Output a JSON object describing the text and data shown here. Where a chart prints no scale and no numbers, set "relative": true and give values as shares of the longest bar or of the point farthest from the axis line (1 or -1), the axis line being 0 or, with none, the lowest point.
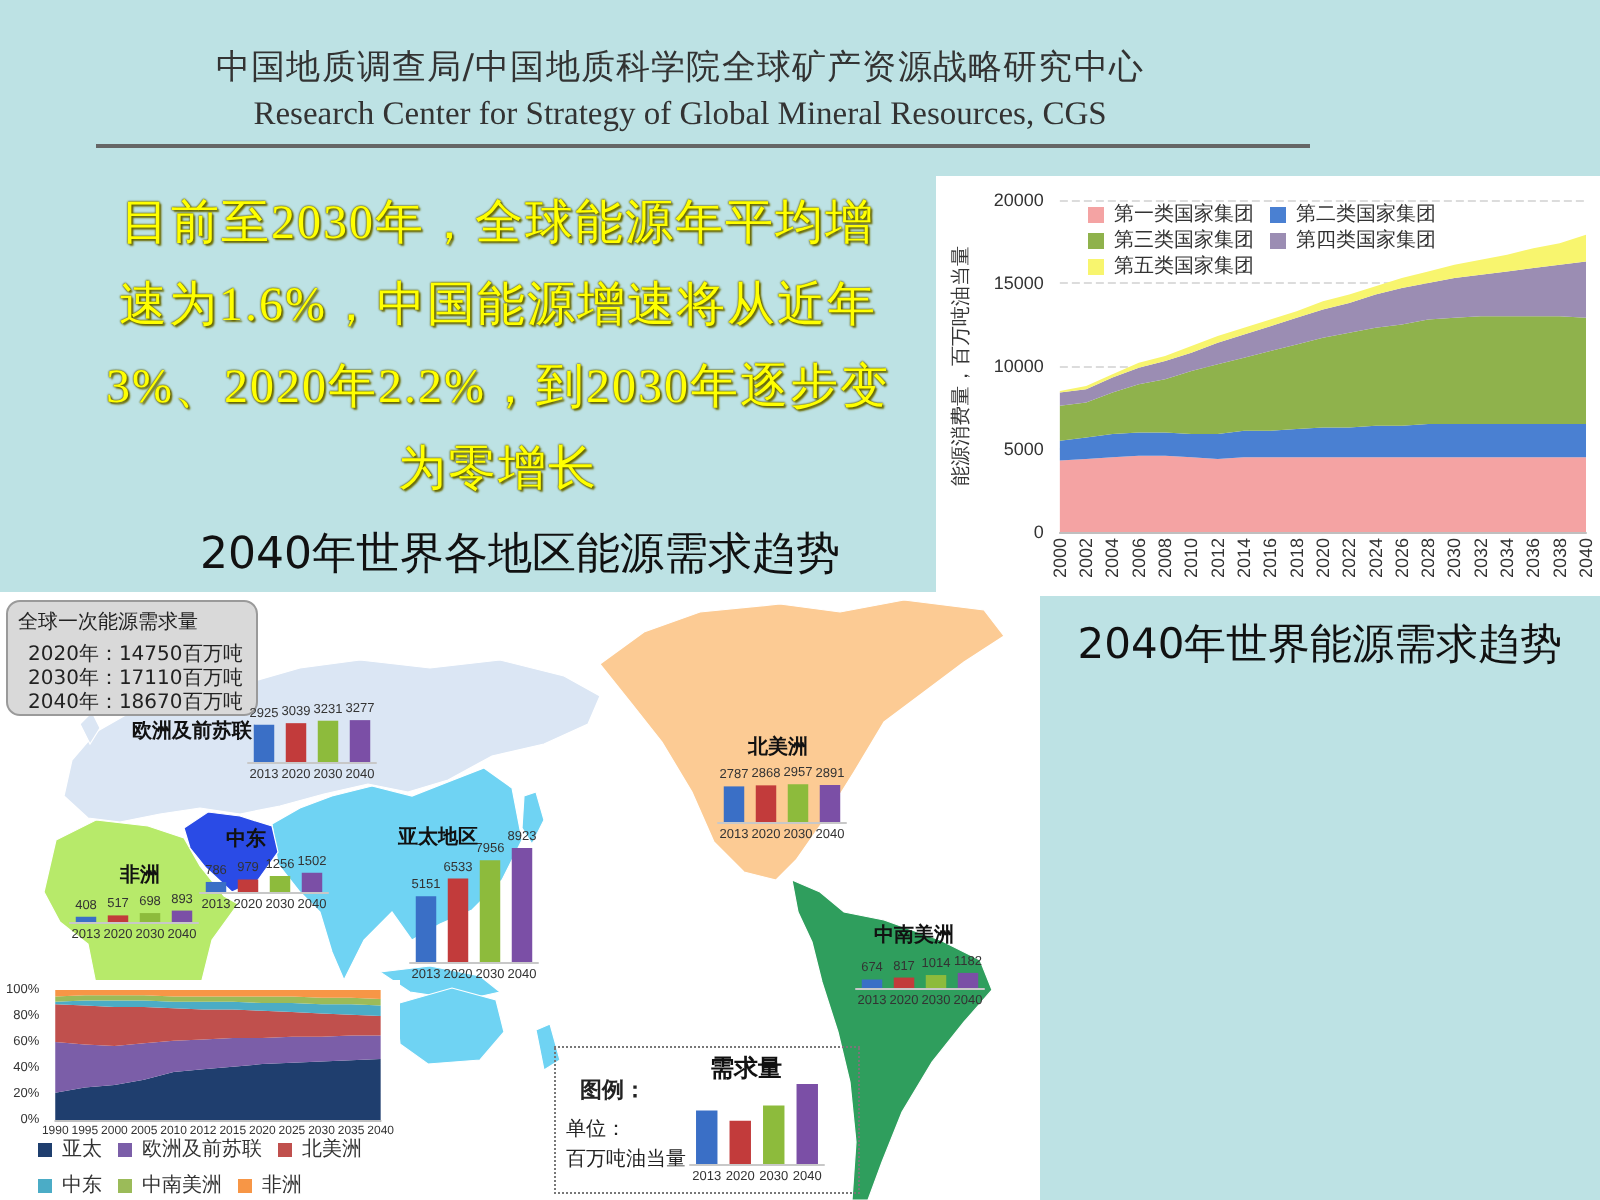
{
  "chart_data": [
    {
      "type": "other",
      "title": "中国地质调查局/中国地质科学院全球矿产资源战略研究中心",
      "subtitle": "Research Center for Strategy of Global Mineral Resources, CGS",
      "annotations": [
        "目前至2030年，全球能源年平均增速为1.6%，中国能源增速将从近年3%、2020年2.2%，到2030年逐步变为零增长",
        "2040年世界各地区能源需求趋势",
        "全球一次能源需求量",
        "2020年：14750百万吨",
        "2030年：17110百万吨",
        "2040年：18670百万吨"
      ]
    },
    {
      "type": "area",
      "title": "2040年世界能源需求趋势",
      "ylabel": "能源消费量，百万吨油当量",
      "stacked": true,
      "categories": [
        "2000",
        "2002",
        "2004",
        "2006",
        "2008",
        "2010",
        "2012",
        "2014",
        "2016",
        "2018",
        "2020",
        "2022",
        "2024",
        "2026",
        "2028",
        "2030",
        "2032",
        "2034",
        "2036",
        "2038",
        "2040"
      ],
      "series": [
        {
          "name": "第一类国家集团",
          "color": "#f4a3a3",
          "values": [
            4300,
            4400,
            4500,
            4600,
            4600,
            4500,
            4400,
            4500,
            4500,
            4500,
            4500,
            4500,
            4500,
            4500,
            4500,
            4500,
            4500,
            4500,
            4500,
            4500,
            4500
          ]
        },
        {
          "name": "第二类国家集团",
          "color": "#4a80d2",
          "values": [
            1200,
            1300,
            1400,
            1400,
            1400,
            1400,
            1500,
            1600,
            1600,
            1700,
            1800,
            1800,
            1900,
            1900,
            2000,
            2000,
            2000,
            2000,
            2000,
            2000,
            2000
          ]
        },
        {
          "name": "第三类国家集团",
          "color": "#8fb24c",
          "values": [
            2100,
            2100,
            2500,
            2900,
            3200,
            3800,
            4200,
            4400,
            4800,
            5100,
            5400,
            5700,
            5900,
            6100,
            6300,
            6400,
            6500,
            6500,
            6500,
            6500,
            6400
          ]
        },
        {
          "name": "第四类国家集团",
          "color": "#9b8db3",
          "values": [
            800,
            800,
            900,
            1000,
            1100,
            1100,
            1300,
            1400,
            1500,
            1600,
            1700,
            1800,
            2000,
            2200,
            2200,
            2400,
            2500,
            2700,
            2900,
            3100,
            3400
          ]
        },
        {
          "name": "第五类国家集团",
          "color": "#f8f56e",
          "values": [
            100,
            200,
            200,
            300,
            300,
            400,
            400,
            400,
            400,
            400,
            500,
            500,
            500,
            600,
            700,
            800,
            900,
            1000,
            1200,
            1300,
            1600
          ]
        }
      ],
      "ylim": [
        0,
        20000
      ],
      "yticks": [
        0,
        5000,
        10000,
        15000,
        20000
      ],
      "grid": "y",
      "legend": "top left"
    },
    {
      "type": "bar",
      "title": "欧洲及前苏联",
      "categories": [
        "2013",
        "2020",
        "2030",
        "2040"
      ],
      "values": [
        2925,
        3039,
        3231,
        3277
      ],
      "colors": [
        "#3a6fc6",
        "#c23b3b",
        "#8dbb3c",
        "#7b4fa6"
      ],
      "data_labels": true,
      "tick_labels": "x"
    },
    {
      "type": "bar",
      "title": "中东",
      "categories": [
        "2013",
        "2020",
        "2030",
        "2040"
      ],
      "values": [
        786,
        979,
        1256,
        1502
      ],
      "colors": [
        "#3a6fc6",
        "#c23b3b",
        "#8dbb3c",
        "#7b4fa6"
      ],
      "data_labels": true,
      "tick_labels": "x"
    },
    {
      "type": "bar",
      "title": "非洲",
      "categories": [
        "2013",
        "2020",
        "2030",
        "2040"
      ],
      "values": [
        408,
        517,
        698,
        893
      ],
      "colors": [
        "#3a6fc6",
        "#c23b3b",
        "#8dbb3c",
        "#7b4fa6"
      ],
      "data_labels": true,
      "tick_labels": "x"
    },
    {
      "type": "bar",
      "title": "亚太地区",
      "categories": [
        "2013",
        "2020",
        "2030",
        "2040"
      ],
      "values": [
        5151,
        6533,
        7956,
        8923
      ],
      "colors": [
        "#3a6fc6",
        "#c23b3b",
        "#8dbb3c",
        "#7b4fa6"
      ],
      "data_labels": true,
      "tick_labels": "x"
    },
    {
      "type": "bar",
      "title": "北美洲",
      "categories": [
        "2013",
        "2020",
        "2030",
        "2040"
      ],
      "values": [
        2787,
        2868,
        2957,
        2891
      ],
      "colors": [
        "#3a6fc6",
        "#c23b3b",
        "#8dbb3c",
        "#7b4fa6"
      ],
      "data_labels": true,
      "tick_labels": "x"
    },
    {
      "type": "bar",
      "title": "中南美洲",
      "categories": [
        "2013",
        "2020",
        "2030",
        "2040"
      ],
      "values": [
        674,
        817,
        1014,
        1182
      ],
      "colors": [
        "#3a6fc6",
        "#c23b3b",
        "#8dbb3c",
        "#7b4fa6"
      ],
      "data_labels": true,
      "tick_labels": "x"
    },
    {
      "type": "bar",
      "relative": true,
      "title": "需求量",
      "annotations": [
        "图例：",
        "单位：",
        "百万吨油当量"
      ],
      "categories": [
        "2013",
        "2020",
        "2030",
        "2040"
      ],
      "values": [
        0.67,
        0.54,
        0.73,
        1
      ],
      "colors": [
        "#3a6fc6",
        "#c23b3b",
        "#8dbb3c",
        "#7b4fa6"
      ],
      "tick_labels": "x"
    },
    {
      "type": "area",
      "stacked": true,
      "categories": [
        "1990",
        "1995",
        "2000",
        "2005",
        "2010",
        "2012",
        "2015",
        "2020",
        "2025",
        "2030",
        "2035",
        "2040"
      ],
      "series": [
        {
          "name": "亚太",
          "color": "#1f3e6e",
          "values": [
            21,
            25,
            27,
            31,
            37,
            39,
            41,
            43,
            44,
            45,
            46,
            47
          ]
        },
        {
          "name": "欧洲及前苏联",
          "color": "#7b5ea8",
          "values": [
            39,
            33,
            30,
            28,
            24,
            23,
            22,
            20,
            20,
            19,
            19,
            18
          ]
        },
        {
          "name": "北美洲",
          "color": "#c0504d",
          "values": [
            29,
            30,
            30,
            28,
            25,
            23,
            22,
            21,
            19,
            18,
            16,
            15
          ]
        },
        {
          "name": "中东",
          "color": "#4bacc6",
          "values": [
            2,
            4,
            5,
            5,
            5,
            6,
            6,
            6,
            7,
            7,
            8,
            8
          ]
        },
        {
          "name": "中南美洲",
          "color": "#9bbb59",
          "values": [
            4,
            4,
            4,
            4,
            4,
            4,
            4,
            5,
            5,
            5,
            5,
            5
          ]
        },
        {
          "name": "非洲",
          "color": "#f79646",
          "values": [
            5,
            4,
            4,
            4,
            5,
            5,
            5,
            5,
            5,
            6,
            6,
            7
          ]
        }
      ],
      "ylim": [
        0,
        100
      ],
      "yticks": [
        {
          "value": 0,
          "label": "0%"
        },
        {
          "value": 20,
          "label": "20%"
        },
        {
          "value": 40,
          "label": "40%"
        },
        {
          "value": 60,
          "label": "60%"
        },
        {
          "value": 80,
          "label": "80%"
        },
        {
          "value": 100,
          "label": "100%"
        }
      ],
      "legend": "bottom"
    }
  ]
}
